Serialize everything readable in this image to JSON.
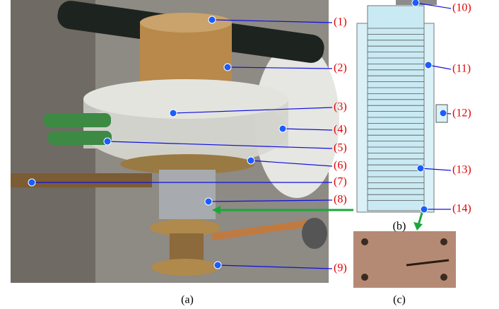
{
  "figure": {
    "callouts": [
      "(1)",
      "(2)",
      "(3)",
      "(4)",
      "(5)",
      "(6)",
      "(7)",
      "(8)",
      "(9)",
      "(10)",
      "(11)",
      "(12)",
      "(13)",
      "(14)"
    ],
    "panels": [
      "(a)",
      "(b)",
      "(c)"
    ]
  }
}
